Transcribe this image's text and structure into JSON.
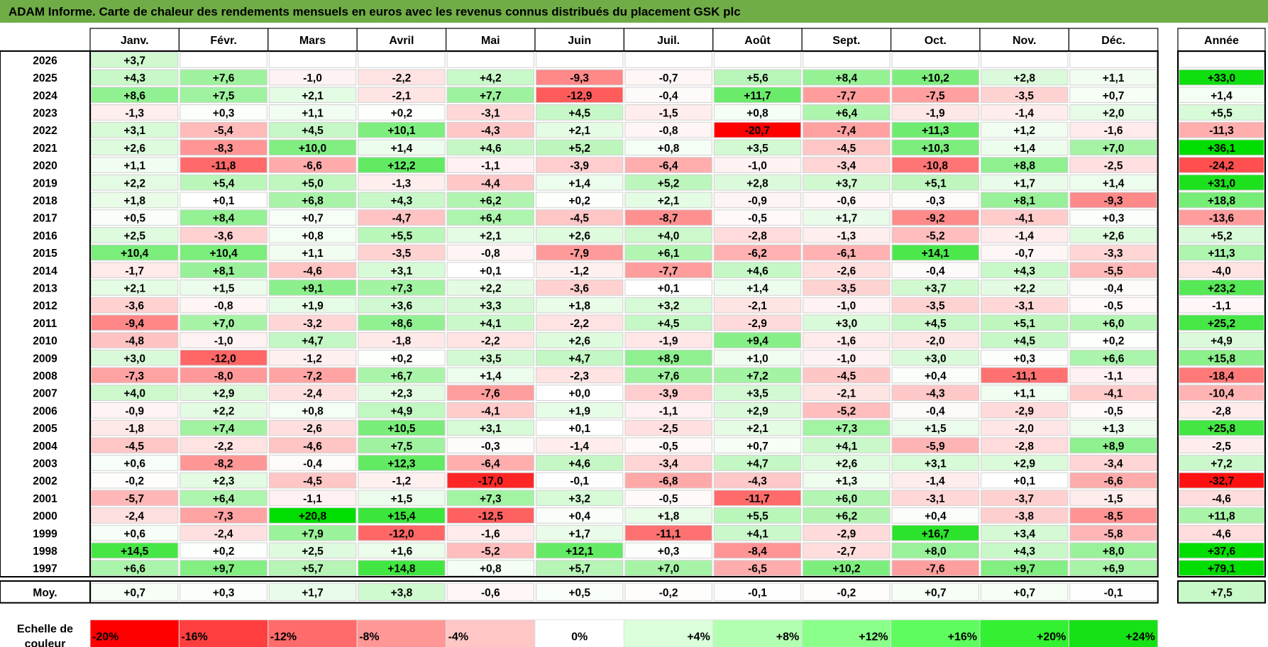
{
  "title": "ADAM Informe. Carte de chaleur des rendements mensuels en euros avec les revenus connus distribués du placement GSK plc",
  "chart_data": {
    "type": "heatmap",
    "columns": [
      "Janv.",
      "Févr.",
      "Mars",
      "Avril",
      "Mai",
      "Juin",
      "Juil.",
      "Août",
      "Sept.",
      "Oct.",
      "Nov.",
      "Déc."
    ],
    "year_column_label": "Année",
    "rows": [
      {
        "year": "2026",
        "values": [
          "+3,7",
          "",
          "",
          "",
          "",
          "",
          "",
          "",
          "",
          "",
          "",
          ""
        ],
        "annual": ""
      },
      {
        "year": "2025",
        "values": [
          "+4,3",
          "+7,6",
          "-1,0",
          "-2,2",
          "+4,2",
          "-9,3",
          "-0,7",
          "+5,6",
          "+8,4",
          "+10,2",
          "+2,8",
          "+1,1"
        ],
        "annual": "+33,0"
      },
      {
        "year": "2024",
        "values": [
          "+8,6",
          "+7,5",
          "+2,1",
          "-2,1",
          "+7,7",
          "-12,9",
          "-0,4",
          "+11,7",
          "-7,7",
          "-7,5",
          "-3,5",
          "+0,7"
        ],
        "annual": "+1,4"
      },
      {
        "year": "2023",
        "values": [
          "-1,3",
          "+0,3",
          "+1,1",
          "+0,2",
          "-3,1",
          "+4,5",
          "-1,5",
          "+0,8",
          "+6,4",
          "-1,9",
          "-1,4",
          "+2,0"
        ],
        "annual": "+5,5"
      },
      {
        "year": "2022",
        "values": [
          "+3,1",
          "-5,4",
          "+4,5",
          "+10,1",
          "-4,3",
          "+2,1",
          "-0,8",
          "-20,7",
          "-7,4",
          "+11,3",
          "+1,2",
          "-1,6"
        ],
        "annual": "-11,3"
      },
      {
        "year": "2021",
        "values": [
          "+2,6",
          "-8,3",
          "+10,0",
          "+1,4",
          "+4,6",
          "+5,2",
          "+0,8",
          "+3,5",
          "-4,5",
          "+10,3",
          "+1,4",
          "+7,0"
        ],
        "annual": "+36,1"
      },
      {
        "year": "2020",
        "values": [
          "+1,1",
          "-11,8",
          "-6,6",
          "+12,2",
          "-1,1",
          "-3,9",
          "-6,4",
          "-1,0",
          "-3,4",
          "-10,8",
          "+8,8",
          "-2,5"
        ],
        "annual": "-24,2"
      },
      {
        "year": "2019",
        "values": [
          "+2,2",
          "+5,4",
          "+5,0",
          "-1,3",
          "-4,4",
          "+1,4",
          "+5,2",
          "+2,8",
          "+3,7",
          "+5,1",
          "+1,7",
          "+1,4"
        ],
        "annual": "+31,0"
      },
      {
        "year": "2018",
        "values": [
          "+1,8",
          "+0,1",
          "+6,8",
          "+4,3",
          "+6,2",
          "+0,2",
          "+2,1",
          "-0,9",
          "-0,6",
          "-0,3",
          "+8,1",
          "-9,3"
        ],
        "annual": "+18,8"
      },
      {
        "year": "2017",
        "values": [
          "+0,5",
          "+8,4",
          "+0,7",
          "-4,7",
          "+6,4",
          "-4,5",
          "-8,7",
          "-0,5",
          "+1,7",
          "-9,2",
          "-4,1",
          "+0,3"
        ],
        "annual": "-13,6"
      },
      {
        "year": "2016",
        "values": [
          "+2,5",
          "-3,6",
          "+0,8",
          "+5,5",
          "+2,1",
          "+2,6",
          "+4,0",
          "-2,8",
          "-1,3",
          "-5,2",
          "-1,4",
          "+2,6"
        ],
        "annual": "+5,2"
      },
      {
        "year": "2015",
        "values": [
          "+10,4",
          "+10,4",
          "+1,1",
          "-3,5",
          "-0,8",
          "-7,9",
          "+6,1",
          "-6,2",
          "-6,1",
          "+14,1",
          "-0,7",
          "-3,3"
        ],
        "annual": "+11,3"
      },
      {
        "year": "2014",
        "values": [
          "-1,7",
          "+8,1",
          "-4,6",
          "+3,1",
          "+0,1",
          "-1,2",
          "-7,7",
          "+4,6",
          "-2,6",
          "-0,4",
          "+4,3",
          "-5,5"
        ],
        "annual": "-4,0"
      },
      {
        "year": "2013",
        "values": [
          "+2,1",
          "+1,5",
          "+9,1",
          "+7,3",
          "+2,2",
          "-3,6",
          "+0,1",
          "+1,4",
          "-3,5",
          "+3,7",
          "+2,2",
          "-0,4"
        ],
        "annual": "+23,2"
      },
      {
        "year": "2012",
        "values": [
          "-3,6",
          "-0,8",
          "+1,9",
          "+3,6",
          "+3,3",
          "+1,8",
          "+3,2",
          "-2,1",
          "-1,0",
          "-3,5",
          "-3,1",
          "-0,5"
        ],
        "annual": "-1,1"
      },
      {
        "year": "2011",
        "values": [
          "-9,4",
          "+7,0",
          "-3,2",
          "+8,6",
          "+4,1",
          "-2,2",
          "+4,5",
          "-2,9",
          "+3,0",
          "+4,5",
          "+5,1",
          "+6,0"
        ],
        "annual": "+25,2"
      },
      {
        "year": "2010",
        "values": [
          "-4,8",
          "-1,0",
          "+4,7",
          "-1,8",
          "-2,2",
          "+2,6",
          "-1,9",
          "+9,4",
          "-1,6",
          "-2,0",
          "+4,5",
          "+0,2"
        ],
        "annual": "+4,9"
      },
      {
        "year": "2009",
        "values": [
          "+3,0",
          "-12,0",
          "-1,2",
          "+0,2",
          "+3,5",
          "+4,7",
          "+8,9",
          "+1,0",
          "-1,0",
          "+3,0",
          "+0,3",
          "+6,6"
        ],
        "annual": "+15,8"
      },
      {
        "year": "2008",
        "values": [
          "-7,3",
          "-8,0",
          "-7,2",
          "+6,7",
          "+1,4",
          "-2,3",
          "+7,6",
          "+7,2",
          "-4,5",
          "+0,4",
          "-11,1",
          "-1,1"
        ],
        "annual": "-18,4"
      },
      {
        "year": "2007",
        "values": [
          "+4,0",
          "+2,9",
          "-2,4",
          "+2,3",
          "-7,6",
          "+0,0",
          "-3,9",
          "+3,5",
          "-2,1",
          "-4,3",
          "+1,1",
          "-4,1"
        ],
        "annual": "-10,4"
      },
      {
        "year": "2006",
        "values": [
          "-0,9",
          "+2,2",
          "+0,8",
          "+4,9",
          "-4,1",
          "+1,9",
          "-1,1",
          "+2,9",
          "-5,2",
          "-0,4",
          "-2,9",
          "-0,5"
        ],
        "annual": "-2,8"
      },
      {
        "year": "2005",
        "values": [
          "-1,8",
          "+7,4",
          "-2,6",
          "+10,5",
          "+3,1",
          "+0,1",
          "-2,5",
          "+2,1",
          "+7,3",
          "+1,5",
          "-2,0",
          "+1,3"
        ],
        "annual": "+25,8"
      },
      {
        "year": "2004",
        "values": [
          "-4,5",
          "-2,2",
          "-4,6",
          "+7,5",
          "-0,3",
          "-1,4",
          "-0,5",
          "+0,7",
          "+4,1",
          "-5,9",
          "-2,8",
          "+8,9"
        ],
        "annual": "-2,5"
      },
      {
        "year": "2003",
        "values": [
          "+0,6",
          "-8,2",
          "-0,4",
          "+12,3",
          "-6,4",
          "+4,6",
          "-3,4",
          "+4,7",
          "+2,6",
          "+3,1",
          "+2,9",
          "-3,4"
        ],
        "annual": "+7,2"
      },
      {
        "year": "2002",
        "values": [
          "-0,2",
          "+2,3",
          "-4,5",
          "-1,2",
          "-17,0",
          "-0,1",
          "-6,8",
          "-4,3",
          "+1,3",
          "-1,4",
          "+0,1",
          "-6,6"
        ],
        "annual": "-32,7"
      },
      {
        "year": "2001",
        "values": [
          "-5,7",
          "+6,4",
          "-1,1",
          "+1,5",
          "+7,3",
          "+3,2",
          "-0,5",
          "-11,7",
          "+6,0",
          "-3,1",
          "-3,7",
          "-1,5"
        ],
        "annual": "-4,6"
      },
      {
        "year": "2000",
        "values": [
          "-2,4",
          "-7,3",
          "+20,8",
          "+15,4",
          "-12,5",
          "+0,4",
          "+1,8",
          "+5,5",
          "+6,2",
          "+0,4",
          "-3,8",
          "-8,5"
        ],
        "annual": "+11,8"
      },
      {
        "year": "1999",
        "values": [
          "+0,6",
          "-2,4",
          "+7,9",
          "-12,0",
          "-1,6",
          "+1,7",
          "-11,1",
          "+4,1",
          "-2,9",
          "+16,7",
          "+3,4",
          "-5,8"
        ],
        "annual": "-4,6"
      },
      {
        "year": "1998",
        "values": [
          "+14,5",
          "+0,2",
          "+2,5",
          "+1,6",
          "-5,2",
          "+12,1",
          "+0,3",
          "-8,4",
          "-2,7",
          "+8,0",
          "+4,3",
          "+8,0"
        ],
        "annual": "+37,6"
      },
      {
        "year": "1997",
        "values": [
          "+6,6",
          "+9,7",
          "+5,7",
          "+14,8",
          "+0,8",
          "+5,7",
          "+7,0",
          "-6,5",
          "+10,2",
          "-7,6",
          "+9,7",
          "+6,9"
        ],
        "annual": "+79,1"
      }
    ],
    "average": {
      "label": "Moy.",
      "values": [
        "+0,7",
        "+0,3",
        "+1,7",
        "+3,8",
        "-0,6",
        "+0,5",
        "-0,2",
        "-0,1",
        "-0,2",
        "+0,7",
        "+0,7",
        "-0,1"
      ],
      "annual": "+7,5"
    },
    "color_scale": {
      "label": "Echelle de couleur",
      "stops": [
        {
          "label": "-20%",
          "color": "#ff0000"
        },
        {
          "label": "-16%",
          "color": "#ff3f3f"
        },
        {
          "label": "-12%",
          "color": "#ff6b6b"
        },
        {
          "label": "-8%",
          "color": "#ff9797"
        },
        {
          "label": "-4%",
          "color": "#ffc6c6"
        },
        {
          "label": "0%",
          "color": "#ffffff"
        },
        {
          "label": "+4%",
          "color": "#daffda"
        },
        {
          "label": "+8%",
          "color": "#b2ffb2"
        },
        {
          "label": "+12%",
          "color": "#8aff8a"
        },
        {
          "label": "+16%",
          "color": "#5efc5e"
        },
        {
          "label": "+20%",
          "color": "#33f033"
        },
        {
          "label": "+24%",
          "color": "#16e016"
        }
      ]
    },
    "colors": {
      "title_bar": "#70ad47",
      "negative_max": "#ff0000",
      "positive_max": "#00dd00",
      "neutral": "#ffffff"
    }
  }
}
